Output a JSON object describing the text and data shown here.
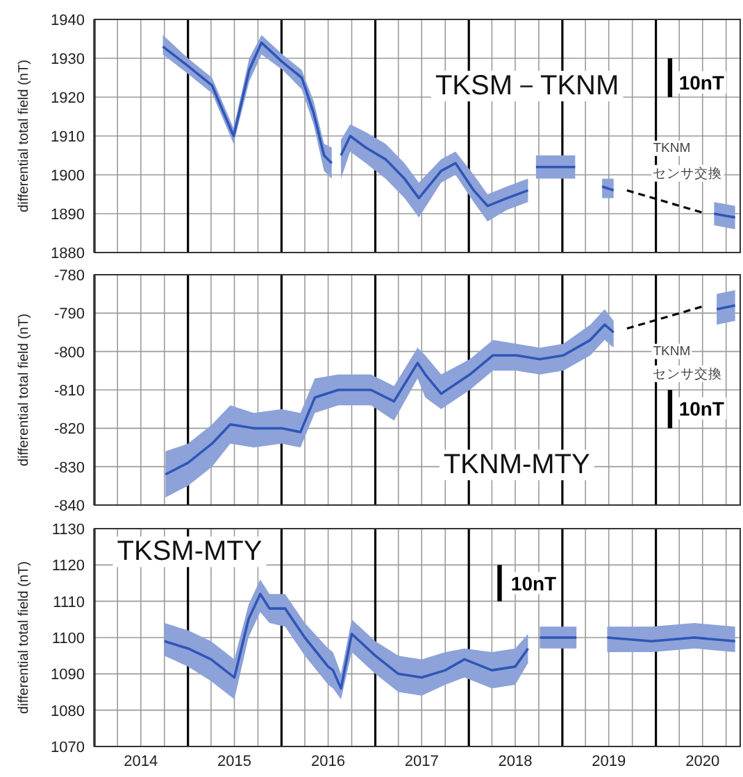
{
  "chart_data": [
    {
      "type": "line",
      "title": "TKSM－TKNM",
      "ylabel": "differential total field (nT)",
      "xlim": [
        "2014-01-01",
        "2020-11-25"
      ],
      "ylim": [
        1880,
        1940
      ],
      "yticks": [
        1880,
        1890,
        1900,
        1910,
        1920,
        1930,
        1940
      ],
      "grid": true,
      "tick_labels": "y",
      "xticks": [
        {
          "value": "2014-01-01",
          "label": null
        },
        {
          "value": "2014-04-01",
          "label": null
        },
        {
          "value": "2014-07-01",
          "label": null
        },
        {
          "value": "2014-10-01",
          "label": null
        },
        {
          "value": "2015-01-01",
          "label": null
        },
        {
          "value": "2015-04-01",
          "label": null
        },
        {
          "value": "2015-07-01",
          "label": null
        },
        {
          "value": "2015-10-01",
          "label": null
        },
        {
          "value": "2016-01-01",
          "label": null
        },
        {
          "value": "2016-04-01",
          "label": null
        },
        {
          "value": "2016-07-01",
          "label": null
        },
        {
          "value": "2016-10-01",
          "label": null
        },
        {
          "value": "2017-01-01",
          "label": null
        },
        {
          "value": "2017-04-01",
          "label": null
        },
        {
          "value": "2017-07-01",
          "label": null
        },
        {
          "value": "2017-10-01",
          "label": null
        },
        {
          "value": "2018-01-01",
          "label": null
        },
        {
          "value": "2018-04-01",
          "label": null
        },
        {
          "value": "2018-07-01",
          "label": null
        },
        {
          "value": "2018-10-01",
          "label": null
        },
        {
          "value": "2019-01-01",
          "label": null
        },
        {
          "value": "2019-04-01",
          "label": null
        },
        {
          "value": "2019-07-01",
          "label": null
        },
        {
          "value": "2019-10-01",
          "label": null
        },
        {
          "value": "2020-01-01",
          "label": null
        },
        {
          "value": "2020-04-01",
          "label": null
        },
        {
          "value": "2020-07-01",
          "label": null
        },
        {
          "value": "2020-10-01",
          "label": null
        }
      ],
      "series": [
        {
          "color": "#2f56b8",
          "x": [
            "2014-09-25",
            "2015-01-01",
            "2015-04-05",
            "2015-06-28",
            "2015-08-28",
            "2015-10-15",
            "2016-01-05",
            "2016-03-20",
            "2016-05-05",
            "2016-06-15",
            "2016-07-15"
          ],
          "values": [
            1933,
            1928,
            1923,
            1910,
            1927,
            1934,
            1929,
            1925,
            1916,
            1905,
            1903
          ],
          "lower": [
            1931,
            1926,
            1921,
            1908,
            1924,
            1931,
            1927,
            1922,
            1913,
            1901,
            1899
          ],
          "upper": [
            1936,
            1930,
            1925,
            1912,
            1930,
            1936,
            1931,
            1927,
            1919,
            1908,
            1907
          ]
        },
        {
          "color": "#2f56b8",
          "x": [
            "2016-08-20",
            "2016-09-25",
            "2016-11-25",
            "2017-02-10",
            "2017-04-25",
            "2017-06-20",
            "2017-09-15",
            "2017-11-10",
            "2018-01-20",
            "2018-03-15",
            "2018-05-30",
            "2018-08-20"
          ],
          "values": [
            1905,
            1910,
            1907,
            1904,
            1899,
            1894,
            1901,
            1903,
            1896,
            1892,
            1894,
            1896
          ],
          "lower": [
            1899,
            1906,
            1903,
            1899,
            1894,
            1889,
            1898,
            1900,
            1893,
            1888,
            1891,
            1893
          ],
          "upper": [
            1909,
            1913,
            1911,
            1908,
            1903,
            1898,
            1904,
            1906,
            1900,
            1895,
            1897,
            1899
          ]
        },
        {
          "color": "#2f56b8",
          "x": [
            "2018-09-20",
            "2019-02-20"
          ],
          "values": [
            1902,
            1902
          ],
          "lower": [
            1899,
            1899
          ],
          "upper": [
            1905,
            1905
          ]
        },
        {
          "color": "#2f56b8",
          "x": [
            "2019-06-05",
            "2019-07-20"
          ],
          "values": [
            1897,
            1896
          ],
          "lower": [
            1894,
            1894
          ],
          "upper": [
            1899,
            1899
          ]
        },
        {
          "color": "#2f56b8",
          "x": [
            "2020-08-15",
            "2020-11-05"
          ],
          "values": [
            1890,
            1889
          ],
          "lower": [
            1887,
            1886
          ],
          "upper": [
            1893,
            1892
          ]
        },
        {
          "color": "#000000",
          "line_style": "dashed",
          "x": [
            "2019-09-10",
            "2020-07-15"
          ],
          "values": [
            1896,
            1890
          ]
        },
        {
          "color": "#000000",
          "x": [
            "2020-02-25",
            "2020-02-25"
          ],
          "values": [
            1920,
            1930
          ]
        }
      ],
      "annotations": [
        "10nT",
        "TKNM",
        "センサ交換"
      ]
    },
    {
      "type": "line",
      "title": "TKNM-MTY",
      "ylabel": "differential total field (nT)",
      "xlim": [
        "2014-01-01",
        "2020-11-25"
      ],
      "ylim": [
        -840,
        -780
      ],
      "yticks": [
        -840,
        -830,
        -820,
        -810,
        -800,
        -790,
        -780
      ],
      "grid": true,
      "tick_labels": "y",
      "xticks": [
        {
          "value": "2014-01-01",
          "label": null
        },
        {
          "value": "2014-04-01",
          "label": null
        },
        {
          "value": "2014-07-01",
          "label": null
        },
        {
          "value": "2014-10-01",
          "label": null
        },
        {
          "value": "2015-01-01",
          "label": null
        },
        {
          "value": "2015-04-01",
          "label": null
        },
        {
          "value": "2015-07-01",
          "label": null
        },
        {
          "value": "2015-10-01",
          "label": null
        },
        {
          "value": "2016-01-01",
          "label": null
        },
        {
          "value": "2016-04-01",
          "label": null
        },
        {
          "value": "2016-07-01",
          "label": null
        },
        {
          "value": "2016-10-01",
          "label": null
        },
        {
          "value": "2017-01-01",
          "label": null
        },
        {
          "value": "2017-04-01",
          "label": null
        },
        {
          "value": "2017-07-01",
          "label": null
        },
        {
          "value": "2017-10-01",
          "label": null
        },
        {
          "value": "2018-01-01",
          "label": null
        },
        {
          "value": "2018-04-01",
          "label": null
        },
        {
          "value": "2018-07-01",
          "label": null
        },
        {
          "value": "2018-10-01",
          "label": null
        },
        {
          "value": "2019-01-01",
          "label": null
        },
        {
          "value": "2019-04-01",
          "label": null
        },
        {
          "value": "2019-07-01",
          "label": null
        },
        {
          "value": "2019-10-01",
          "label": null
        },
        {
          "value": "2020-01-01",
          "label": null
        },
        {
          "value": "2020-04-01",
          "label": null
        },
        {
          "value": "2020-07-01",
          "label": null
        },
        {
          "value": "2020-10-01",
          "label": null
        }
      ],
      "series": [
        {
          "color": "#2f56b8",
          "x": [
            "2014-10-05",
            "2015-01-01",
            "2015-04-05",
            "2015-06-15",
            "2015-09-15",
            "2016-01-01",
            "2016-03-15",
            "2016-05-10",
            "2016-08-10",
            "2016-12-15",
            "2017-03-15",
            "2017-06-15",
            "2017-07-15",
            "2017-09-15",
            "2018-01-05",
            "2018-04-05",
            "2018-07-05",
            "2018-10-05",
            "2019-01-05",
            "2019-04-20",
            "2019-06-15",
            "2019-07-20"
          ],
          "values": [
            -832,
            -829,
            -824,
            -819,
            -820,
            -820,
            -821,
            -812,
            -810,
            -810,
            -813,
            -803,
            -806,
            -811,
            -806,
            -801,
            -801,
            -802,
            -801,
            -797,
            -793,
            -795
          ],
          "lower": [
            -838,
            -835,
            -830,
            -824,
            -825,
            -824,
            -825,
            -816,
            -814,
            -814,
            -818,
            -807,
            -812,
            -815,
            -810,
            -805,
            -805,
            -806,
            -805,
            -801,
            -797,
            -799
          ],
          "upper": [
            -826,
            -824,
            -819,
            -814,
            -816,
            -815,
            -816,
            -807,
            -806,
            -806,
            -809,
            -799,
            -801,
            -806,
            -802,
            -797,
            -798,
            -799,
            -798,
            -793,
            -789,
            -792
          ]
        },
        {
          "color": "#2f56b8",
          "x": [
            "2020-08-25",
            "2020-11-05"
          ],
          "values": [
            -789,
            -788
          ],
          "lower": [
            -793,
            -792
          ],
          "upper": [
            -785,
            -784
          ]
        },
        {
          "color": "#000000",
          "line_style": "dashed",
          "x": [
            "2019-09-10",
            "2020-07-15"
          ],
          "values": [
            -794,
            -788
          ]
        },
        {
          "color": "#000000",
          "x": [
            "2020-02-25",
            "2020-02-25"
          ],
          "values": [
            -820,
            -810
          ]
        }
      ],
      "annotations": [
        "10nT",
        "TKNM",
        "センサ交換"
      ]
    },
    {
      "type": "line",
      "title": "TKSM-MTY",
      "ylabel": "differential total field (nT)",
      "xlim": [
        "2014-01-01",
        "2020-11-25"
      ],
      "ylim": [
        1070,
        1130
      ],
      "yticks": [
        1070,
        1080,
        1090,
        1100,
        1110,
        1120,
        1130
      ],
      "grid": true,
      "xticks": [
        {
          "value": "2014-01-01",
          "label": null
        },
        {
          "value": "2014-04-01",
          "label": null
        },
        {
          "value": "2014-07-01",
          "label": "2014"
        },
        {
          "value": "2014-10-01",
          "label": null
        },
        {
          "value": "2015-01-01",
          "label": null
        },
        {
          "value": "2015-04-01",
          "label": null
        },
        {
          "value": "2015-07-01",
          "label": "2015"
        },
        {
          "value": "2015-10-01",
          "label": null
        },
        {
          "value": "2016-01-01",
          "label": null
        },
        {
          "value": "2016-04-01",
          "label": null
        },
        {
          "value": "2016-07-01",
          "label": "2016"
        },
        {
          "value": "2016-10-01",
          "label": null
        },
        {
          "value": "2017-01-01",
          "label": null
        },
        {
          "value": "2017-04-01",
          "label": null
        },
        {
          "value": "2017-07-01",
          "label": "2017"
        },
        {
          "value": "2017-10-01",
          "label": null
        },
        {
          "value": "2018-01-01",
          "label": null
        },
        {
          "value": "2018-04-01",
          "label": null
        },
        {
          "value": "2018-07-01",
          "label": "2018"
        },
        {
          "value": "2018-10-01",
          "label": null
        },
        {
          "value": "2019-01-01",
          "label": null
        },
        {
          "value": "2019-04-01",
          "label": null
        },
        {
          "value": "2019-07-01",
          "label": "2019"
        },
        {
          "value": "2019-10-01",
          "label": null
        },
        {
          "value": "2020-01-01",
          "label": null
        },
        {
          "value": "2020-04-01",
          "label": null
        },
        {
          "value": "2020-07-01",
          "label": "2020"
        },
        {
          "value": "2020-10-01",
          "label": null
        }
      ],
      "series": [
        {
          "color": "#2f56b8",
          "x": [
            "2014-10-01",
            "2015-01-01",
            "2015-04-01",
            "2015-07-01",
            "2015-08-25",
            "2015-10-10",
            "2015-11-15",
            "2016-01-15",
            "2016-04-01",
            "2016-07-01",
            "2016-07-20",
            "2016-08-20",
            "2016-10-01",
            "2017-01-01",
            "2017-04-01",
            "2017-07-01",
            "2017-10-01",
            "2017-12-15",
            "2018-04-01",
            "2018-07-01",
            "2018-08-20"
          ],
          "values": [
            1099,
            1097,
            1094,
            1089,
            1105,
            1112,
            1108,
            1108,
            1100,
            1092,
            1091,
            1086,
            1101,
            1095,
            1090,
            1089,
            1091,
            1094,
            1091,
            1092,
            1097
          ],
          "lower": [
            1095,
            1092,
            1088,
            1083,
            1100,
            1107,
            1104,
            1103,
            1095,
            1087,
            1086,
            1083,
            1096,
            1090,
            1085,
            1084,
            1087,
            1089,
            1086,
            1087,
            1093
          ],
          "upper": [
            1104,
            1102,
            1099,
            1094,
            1109,
            1116,
            1112,
            1112,
            1104,
            1097,
            1096,
            1090,
            1105,
            1099,
            1095,
            1094,
            1096,
            1097,
            1096,
            1097,
            1101
          ]
        },
        {
          "color": "#2f56b8",
          "x": [
            "2018-10-05",
            "2019-02-25"
          ],
          "values": [
            1100,
            1100
          ],
          "lower": [
            1097,
            1097
          ],
          "upper": [
            1103,
            1103
          ]
        },
        {
          "color": "#2f56b8",
          "x": [
            "2019-06-25",
            "2019-12-15",
            "2020-05-30",
            "2020-11-05"
          ],
          "values": [
            1100,
            1099,
            1100,
            1099
          ],
          "lower": [
            1096,
            1096,
            1097,
            1096
          ],
          "upper": [
            1103,
            1103,
            1104,
            1103
          ]
        },
        {
          "color": "#000000",
          "x": [
            "2018-05-01",
            "2018-05-01"
          ],
          "values": [
            1110,
            1120
          ]
        }
      ],
      "annotations": [
        "10nT"
      ]
    }
  ]
}
